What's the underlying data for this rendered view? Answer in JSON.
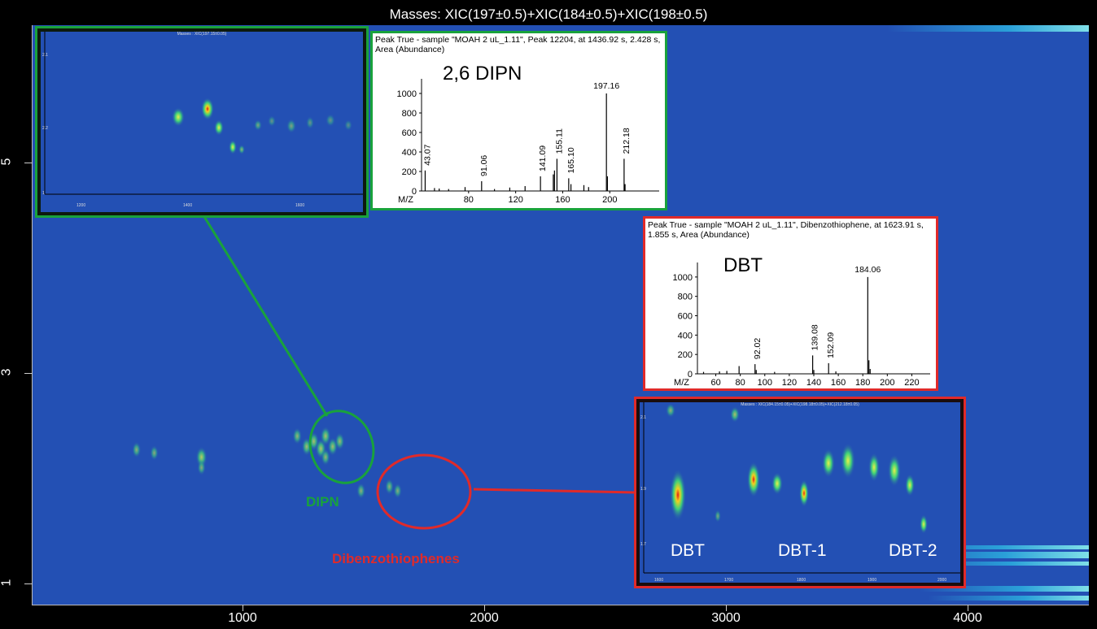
{
  "title": "Masses:  XIC(197±0.5)+XIC(184±0.5)+XIC(198±0.5)",
  "colors": {
    "background": "#2350b4",
    "dipn": "#19a23c",
    "dbt": "#e02a2a"
  },
  "chart_data": [
    {
      "type": "heatmap",
      "title": "Masses:  XIC(197±0.5)+XIC(184±0.5)+XIC(198±0.5)",
      "xlabel": "",
      "ylabel": "",
      "x_ticks": [
        "1000",
        "2000",
        "3000",
        "4000"
      ],
      "y_ticks": [
        "5",
        "3",
        "1"
      ],
      "xlim": [
        230,
        4700
      ],
      "ylim": [
        0.8,
        6.3
      ],
      "spots": [
        {
          "x": 670,
          "y": 2.27,
          "i": 0.3
        },
        {
          "x": 745,
          "y": 2.24,
          "i": 0.25
        },
        {
          "x": 945,
          "y": 2.2,
          "i": 0.6
        },
        {
          "x": 945,
          "y": 2.1,
          "i": 0.25
        },
        {
          "x": 1350,
          "y": 2.4,
          "i": 0.35
        },
        {
          "x": 1390,
          "y": 2.3,
          "i": 0.45
        },
        {
          "x": 1420,
          "y": 2.35,
          "i": 0.5
        },
        {
          "x": 1450,
          "y": 2.28,
          "i": 0.55
        },
        {
          "x": 1470,
          "y": 2.4,
          "i": 0.5
        },
        {
          "x": 1500,
          "y": 2.3,
          "i": 0.45
        },
        {
          "x": 1530,
          "y": 2.35,
          "i": 0.4
        },
        {
          "x": 1470,
          "y": 2.2,
          "i": 0.35
        },
        {
          "x": 1620,
          "y": 1.88,
          "i": 0.3
        },
        {
          "x": 1740,
          "y": 1.92,
          "i": 0.3
        },
        {
          "x": 1775,
          "y": 1.88,
          "i": 0.25
        }
      ],
      "annotations": [
        "DIPN",
        "Dibenzothiophenes"
      ]
    },
    {
      "type": "heatmap",
      "title": "Masses : XIC(197.15±0.05)",
      "x_ticks": [
        "1200",
        "1400",
        "1600"
      ],
      "y_ticks": [
        "2.1",
        "2.2",
        "1"
      ]
    },
    {
      "type": "bar",
      "title": "2,6 DIPN",
      "header": "Peak True - sample \"MOAH 2 uL_1.11\", Peak 12204, at 1436.92 s, 2.428 s, Area (Abundance)",
      "xlabel": "M/Z",
      "x_ticks": [
        "80",
        "120",
        "160",
        "200"
      ],
      "y_ticks": [
        "0",
        "200",
        "400",
        "600",
        "800",
        "1000"
      ],
      "xlim": [
        40,
        242
      ],
      "ylim": [
        0,
        1150
      ],
      "x": [
        43.07,
        51,
        55,
        63,
        77,
        91.06,
        102,
        115,
        128,
        141.09,
        152,
        153,
        155.11,
        165.1,
        167,
        178,
        182,
        197.16,
        198,
        212.18,
        213
      ],
      "values": [
        210,
        30,
        25,
        20,
        40,
        100,
        20,
        35,
        50,
        150,
        170,
        210,
        330,
        130,
        70,
        60,
        40,
        1000,
        150,
        330,
        70
      ],
      "labels": [
        "43.07",
        "91.06",
        "141.09",
        "155.11",
        "165.10",
        "197.16",
        "212.18"
      ]
    },
    {
      "type": "bar",
      "title": "DBT",
      "header": "Peak True - sample \"MOAH 2 uL_1.11\", Dibenzothiophene, at 1623.91 s, 1.855 s, Area (Abundance)",
      "xlabel": "M/Z",
      "x_ticks": [
        "60",
        "80",
        "100",
        "120",
        "140",
        "160",
        "180",
        "200",
        "220"
      ],
      "y_ticks": [
        "0",
        "200",
        "400",
        "600",
        "800",
        "1000"
      ],
      "xlim": [
        45,
        235
      ],
      "ylim": [
        0,
        1150
      ],
      "x": [
        50,
        63,
        69,
        79,
        92.02,
        93,
        108,
        139.08,
        140,
        152.09,
        158,
        184.06,
        185,
        186
      ],
      "values": [
        20,
        25,
        30,
        80,
        100,
        40,
        20,
        190,
        40,
        110,
        25,
        1000,
        140,
        50
      ],
      "labels": [
        "92.02",
        "139.08",
        "152.09",
        "184.06"
      ]
    },
    {
      "type": "heatmap",
      "title": "Masses : XIC(184.15±0.05)+XIC(198.18±0.05)+XIC(212.18±0.05)",
      "x_ticks": [
        "1600",
        "1700",
        "1800",
        "1900",
        "2000"
      ],
      "y_ticks": [
        "2.1",
        "1.9",
        "1.7"
      ],
      "labels": [
        "DBT",
        "DBT-1",
        "DBT-2"
      ]
    }
  ]
}
